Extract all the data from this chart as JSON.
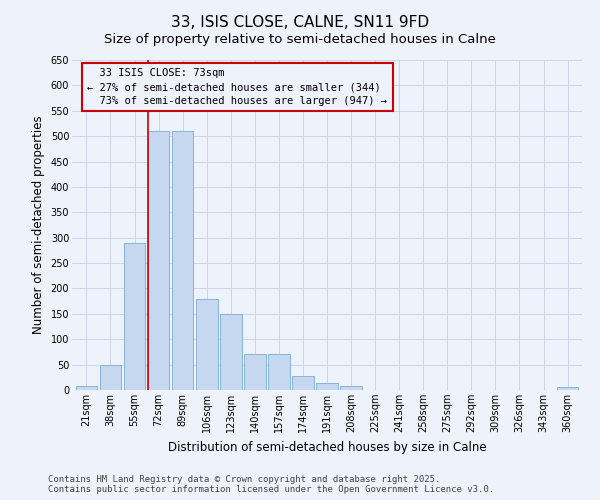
{
  "title": "33, ISIS CLOSE, CALNE, SN11 9FD",
  "subtitle": "Size of property relative to semi-detached houses in Calne",
  "xlabel": "Distribution of semi-detached houses by size in Calne",
  "ylabel": "Number of semi-detached properties",
  "categories": [
    "21sqm",
    "38sqm",
    "55sqm",
    "72sqm",
    "89sqm",
    "106sqm",
    "123sqm",
    "140sqm",
    "157sqm",
    "174sqm",
    "191sqm",
    "208sqm",
    "225sqm",
    "241sqm",
    "258sqm",
    "275sqm",
    "292sqm",
    "309sqm",
    "326sqm",
    "343sqm",
    "360sqm"
  ],
  "values": [
    7,
    50,
    290,
    510,
    510,
    180,
    150,
    70,
    70,
    27,
    13,
    7,
    0,
    0,
    0,
    0,
    0,
    0,
    0,
    0,
    5
  ],
  "bar_color": "#c5d8ef",
  "bar_edge_color": "#7aadd4",
  "marker_bin_index": 3,
  "marker_label": "33 ISIS CLOSE: 73sqm",
  "pct_smaller": 27,
  "n_smaller": 344,
  "pct_larger": 73,
  "n_larger": 947,
  "ylim": [
    0,
    650
  ],
  "yticks": [
    0,
    50,
    100,
    150,
    200,
    250,
    300,
    350,
    400,
    450,
    500,
    550,
    600,
    650
  ],
  "footer1": "Contains HM Land Registry data © Crown copyright and database right 2025.",
  "footer2": "Contains public sector information licensed under the Open Government Licence v3.0.",
  "bg_color": "#eef2fa",
  "grid_color": "#c8d0e8",
  "box_edge_color": "#cc0000",
  "vline_color": "#cc0000",
  "title_fontsize": 11,
  "subtitle_fontsize": 9.5,
  "axis_label_fontsize": 8.5,
  "tick_fontsize": 7,
  "annotation_fontsize": 7.5,
  "footer_fontsize": 6.5
}
